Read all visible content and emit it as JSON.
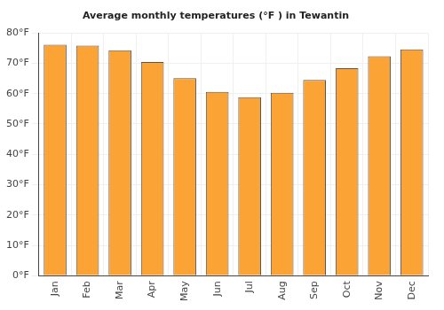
{
  "chart_data": {
    "type": "bar",
    "title": "Average monthly temperatures (°F ) in Tewantin",
    "categories": [
      "Jan",
      "Feb",
      "Mar",
      "Apr",
      "May",
      "Jun",
      "Jul",
      "Aug",
      "Sep",
      "Oct",
      "Nov",
      "Dec"
    ],
    "values": [
      76.1,
      75.8,
      74.3,
      70.4,
      65.1,
      60.6,
      58.8,
      60.3,
      64.5,
      68.4,
      72.3,
      74.6
    ],
    "color": "#fca335",
    "ylim": [
      0,
      80
    ],
    "yticks": [
      {
        "value": 0,
        "label": "0°F"
      },
      {
        "value": 10,
        "label": "10°F"
      },
      {
        "value": 20,
        "label": "20°F"
      },
      {
        "value": 30,
        "label": "30°F"
      },
      {
        "value": 40,
        "label": "40°F"
      },
      {
        "value": 50,
        "label": "50°F"
      },
      {
        "value": 60,
        "label": "60°F"
      },
      {
        "value": 70,
        "label": "70°F"
      },
      {
        "value": 80,
        "label": "80°F"
      }
    ],
    "grid": true
  }
}
